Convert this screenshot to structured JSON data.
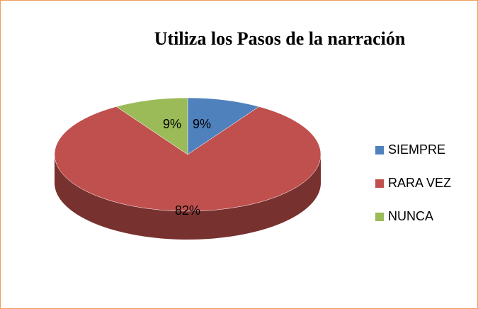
{
  "chart_data": {
    "type": "pie",
    "title": "Utiliza los Pasos de la narración",
    "categories": [
      "SIEMPRE",
      "RARA VEZ",
      "NUNCA"
    ],
    "values": [
      9,
      82,
      9
    ],
    "value_labels": [
      "9%",
      "82%",
      "9%"
    ],
    "colors": [
      "#4f81bd",
      "#c0504d",
      "#9bbb59"
    ],
    "legend": "right"
  }
}
